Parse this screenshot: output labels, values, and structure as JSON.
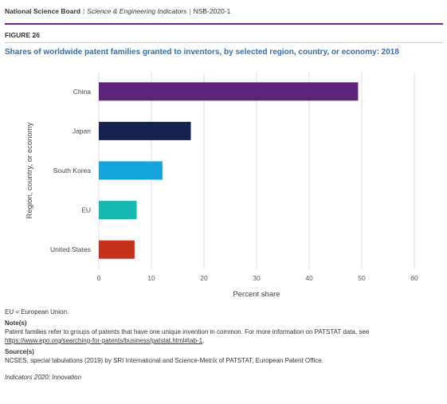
{
  "header": {
    "org": "National Science Board",
    "publication": "Science & Engineering Indicators",
    "report_id": "NSB-2020-1"
  },
  "figure_label": "FIGURE 26",
  "chart_data": {
    "type": "bar",
    "orientation": "horizontal",
    "title": "Shares of worldwide patent families granted to inventors, by selected region, country, or economy: 2018",
    "xlabel": "Percent share",
    "ylabel": "Region, country, or economy",
    "categories": [
      "China",
      "Japan",
      "South Korea",
      "EU",
      "United States"
    ],
    "values": [
      49.3,
      17.5,
      12.1,
      7.2,
      6.8
    ],
    "bar_colors": [
      "#5f237a",
      "#16224f",
      "#13a4dc",
      "#17b8b0",
      "#c4311d"
    ],
    "xlim": [
      0,
      60
    ],
    "xticks": [
      0,
      10,
      20,
      30,
      40,
      50,
      60
    ],
    "grid": "vertical"
  },
  "notes": {
    "abbrev": "EU = European Union.",
    "note_label": "Note(s)",
    "note_text": "Patent families refer to groups of patents that have one unique invention in common. For more information on PATSTAT data, see ",
    "note_link": "https://www.epo.org/searching-for-patents/business/patstat.html#tab-1",
    "note_end": ".",
    "source_label": "Source(s)",
    "source_text": "NCSES, special tabulations (2019) by SRI International and Science-Metrix of PATSTAT, European Patent Office.",
    "footer": "Indicators 2020: Innovation"
  }
}
